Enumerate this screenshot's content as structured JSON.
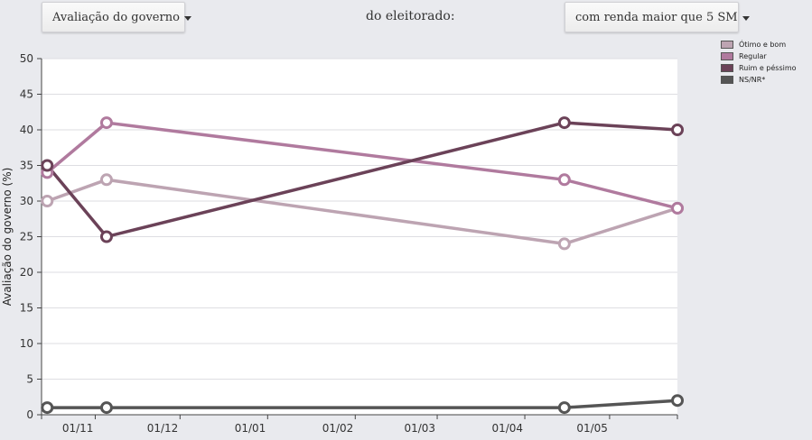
{
  "controls": {
    "metric_label": "Avaliação do governo",
    "middle_text": "do eleitorado:",
    "filter_label": "com renda maior que 5 SM"
  },
  "chart_data": {
    "type": "line",
    "ylabel": "Avaliação do governo (%)",
    "xlabel": "",
    "ylim": [
      0,
      50
    ],
    "yticks": [
      0,
      5,
      10,
      15,
      20,
      25,
      30,
      35,
      40,
      45,
      50
    ],
    "x_range": [
      "2011-10-13",
      "2012-05-25"
    ],
    "xtick_labels": [
      "01/11",
      "01/12",
      "01/01",
      "01/02",
      "01/03",
      "01/04",
      "01/05"
    ],
    "xtick_dates": [
      "2011-11-01",
      "2011-12-01",
      "2012-01-01",
      "2012-02-01",
      "2012-03-01",
      "2012-04-01",
      "2012-05-01"
    ],
    "x": [
      "2011-10-15",
      "2011-11-05",
      "2012-04-15",
      "2012-05-25"
    ],
    "grid": true,
    "legend_position": "top-right",
    "series": [
      {
        "name": "Ótimo e bom",
        "color": "#bda4b2",
        "values": [
          30,
          33,
          24,
          29
        ]
      },
      {
        "name": "Regular",
        "color": "#b07a9e",
        "values": [
          34,
          41,
          33,
          29
        ]
      },
      {
        "name": "Ruim e péssimo",
        "color": "#6b4258",
        "values": [
          35,
          25,
          41,
          40
        ]
      },
      {
        "name": "NS/NR*",
        "color": "#555555",
        "values": [
          1,
          1,
          1,
          2
        ]
      }
    ]
  }
}
